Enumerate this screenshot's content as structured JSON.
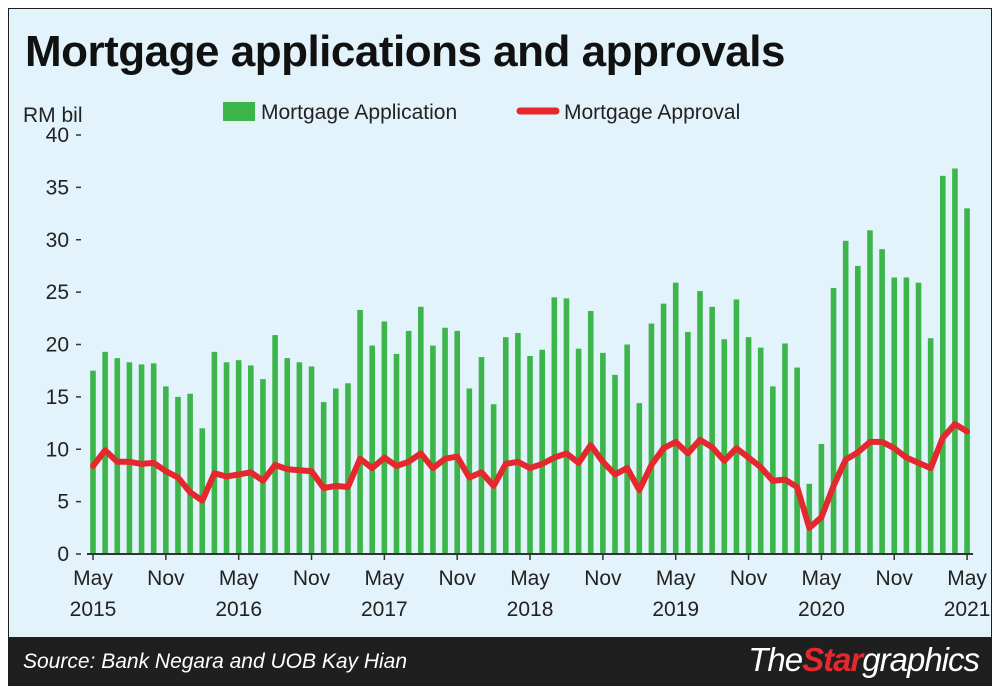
{
  "colors": {
    "background": "#e3f3fb",
    "bar": "#3cb54a",
    "line": "#e5282e",
    "footer": "#1f1f1f",
    "axis": "#333333"
  },
  "footer": {
    "source": "Source: Bank Negara and UOB Kay Hian",
    "brand_the": "The",
    "brand_star": "Star",
    "brand_graphics": "graphics"
  },
  "chart_data": {
    "type": "bar+line",
    "title": "Mortgage applications and approvals",
    "ylabel": "RM bil",
    "ylim": [
      0,
      40
    ],
    "yticks": [
      0,
      5,
      10,
      15,
      20,
      25,
      30,
      35,
      40
    ],
    "legend_position": "top",
    "x_tick_labels": [
      {
        "index": 0,
        "month": "May",
        "year": "2015"
      },
      {
        "index": 6,
        "month": "Nov",
        "year": ""
      },
      {
        "index": 12,
        "month": "May",
        "year": "2016"
      },
      {
        "index": 18,
        "month": "Nov",
        "year": ""
      },
      {
        "index": 24,
        "month": "May",
        "year": "2017"
      },
      {
        "index": 30,
        "month": "Nov",
        "year": ""
      },
      {
        "index": 36,
        "month": "May",
        "year": "2018"
      },
      {
        "index": 42,
        "month": "Nov",
        "year": ""
      },
      {
        "index": 48,
        "month": "May",
        "year": "2019"
      },
      {
        "index": 54,
        "month": "Nov",
        "year": ""
      },
      {
        "index": 60,
        "month": "May",
        "year": "2020"
      },
      {
        "index": 66,
        "month": "Nov",
        "year": ""
      },
      {
        "index": 72,
        "month": "May",
        "year": "2021"
      }
    ],
    "series": [
      {
        "name": "Mortgage Application",
        "type": "bar",
        "values": [
          17.5,
          19.3,
          18.7,
          18.3,
          18.1,
          18.2,
          16.0,
          15.0,
          15.3,
          12.0,
          19.3,
          18.3,
          18.5,
          18.0,
          16.7,
          20.9,
          18.7,
          18.3,
          17.9,
          14.5,
          15.8,
          16.3,
          23.3,
          19.9,
          22.2,
          19.1,
          21.3,
          23.6,
          19.9,
          21.6,
          21.3,
          15.8,
          18.8,
          14.3,
          20.7,
          21.1,
          18.9,
          19.5,
          24.5,
          24.4,
          19.6,
          23.2,
          19.2,
          17.1,
          20.0,
          14.4,
          22.0,
          23.9,
          25.9,
          21.2,
          25.1,
          23.6,
          20.5,
          24.3,
          20.7,
          19.7,
          16.0,
          20.1,
          17.8,
          6.7,
          10.5,
          25.4,
          29.9,
          27.5,
          30.9,
          29.1,
          26.4,
          26.4,
          25.9,
          20.6,
          36.1,
          36.8,
          33.0
        ]
      },
      {
        "name": "Mortgage Approval",
        "type": "line",
        "values": [
          8.4,
          9.9,
          8.8,
          8.8,
          8.6,
          8.7,
          7.9,
          7.3,
          5.9,
          5.1,
          7.7,
          7.4,
          7.6,
          7.8,
          7.0,
          8.5,
          8.1,
          8.0,
          7.9,
          6.3,
          6.5,
          6.4,
          9.1,
          8.2,
          9.2,
          8.4,
          8.8,
          9.6,
          8.2,
          9.1,
          9.3,
          7.3,
          7.8,
          6.5,
          8.6,
          8.8,
          8.2,
          8.6,
          9.2,
          9.6,
          8.7,
          10.4,
          8.8,
          7.6,
          8.2,
          6.1,
          8.5,
          10.1,
          10.7,
          9.6,
          10.9,
          10.2,
          8.9,
          10.1,
          9.2,
          8.3,
          7.0,
          7.1,
          6.4,
          2.5,
          3.5,
          6.5,
          9.0,
          9.7,
          10.7,
          10.7,
          10.1,
          9.2,
          8.7,
          8.2,
          11.1,
          12.4,
          11.7
        ]
      }
    ]
  }
}
